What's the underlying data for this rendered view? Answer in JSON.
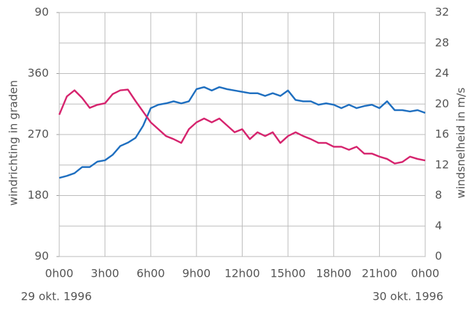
{
  "chart_data": {
    "type": "line",
    "ylabel": "windrichting in graden",
    "y2label": "windsnelheid in m/s",
    "annotations": [
      "29 okt. 1996",
      "30 okt. 1996"
    ],
    "x": [
      0,
      0.5,
      1,
      1.5,
      2,
      2.5,
      3,
      3.5,
      4,
      4.5,
      5,
      5.5,
      6,
      6.5,
      7,
      7.5,
      8,
      8.5,
      9,
      9.5,
      10,
      10.5,
      11,
      11.5,
      12,
      12.5,
      13,
      13.5,
      14,
      14.5,
      15,
      15.5,
      16,
      16.5,
      17,
      17.5,
      18,
      18.5,
      19,
      19.5,
      20,
      20.5,
      21,
      21.5,
      22,
      22.5,
      23,
      23.5,
      24
    ],
    "series": [
      {
        "name": "windrichting",
        "color": "#1f6fc0",
        "axis": "y",
        "values": [
          206,
          209,
          213,
          222,
          222,
          230,
          232,
          240,
          253,
          258,
          265,
          283,
          309,
          314,
          316,
          319,
          316,
          319,
          337,
          340,
          335,
          340,
          337,
          335,
          333,
          331,
          331,
          327,
          331,
          327,
          335,
          321,
          319,
          319,
          314,
          316,
          314,
          309,
          314,
          309,
          312,
          314,
          309,
          319,
          306,
          306,
          304,
          306,
          302
        ]
      },
      {
        "name": "windsnelheid",
        "color": "#d6246e",
        "axis": "y2",
        "values": [
          18.6,
          21.0,
          21.8,
          20.8,
          19.5,
          19.9,
          20.1,
          21.3,
          21.8,
          21.9,
          20.4,
          19.0,
          17.6,
          16.7,
          15.8,
          15.4,
          14.9,
          16.7,
          17.6,
          18.1,
          17.6,
          18.1,
          17.2,
          16.3,
          16.7,
          15.4,
          16.3,
          15.8,
          16.3,
          14.9,
          15.8,
          16.3,
          15.8,
          15.4,
          14.9,
          14.9,
          14.4,
          14.4,
          14.0,
          14.4,
          13.5,
          13.5,
          13.1,
          12.8,
          12.2,
          12.4,
          13.1,
          12.8,
          12.6
        ]
      }
    ],
    "xlim": [
      0,
      24
    ],
    "xticks": [
      {
        "value": 0,
        "label": "0h00"
      },
      {
        "value": 3,
        "label": "3h00"
      },
      {
        "value": 6,
        "label": "6h00"
      },
      {
        "value": 9,
        "label": "9h00"
      },
      {
        "value": 12,
        "label": "12h00"
      },
      {
        "value": 15,
        "label": "15h00"
      },
      {
        "value": 18,
        "label": "18h00"
      },
      {
        "value": 21,
        "label": "21h00"
      },
      {
        "value": 24,
        "label": "0h00"
      }
    ],
    "ylim": [
      90,
      450
    ],
    "yticks": [
      90,
      180,
      270,
      360,
      {
        "value": 450,
        "label": "90"
      }
    ],
    "y2lim": [
      0,
      32
    ],
    "y2ticks": [
      0,
      4,
      8,
      12,
      16,
      20,
      24,
      28,
      32
    ],
    "grid": true
  }
}
